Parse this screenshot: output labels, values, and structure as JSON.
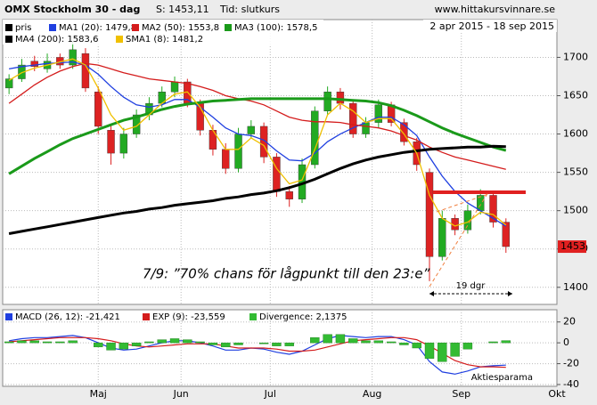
{
  "header": {
    "title": "OMX Stockholm 30 - dag",
    "price": "S: 1453,11",
    "mode": "Tid: slutkurs",
    "site": "www.hittakursvinnare.se",
    "range": "2 apr 2015 - 18 sep 2015"
  },
  "chart_data": [
    {
      "type": "candlestick",
      "name": "pris",
      "categories": [
        null,
        null,
        null,
        null,
        null,
        null,
        null,
        null,
        null,
        null,
        null,
        null,
        null,
        null,
        null,
        null,
        null,
        null,
        null,
        null,
        null,
        null,
        null,
        null,
        null,
        null,
        null,
        null,
        null,
        null,
        null,
        null,
        null,
        null,
        null,
        null,
        null,
        null,
        null,
        null
      ],
      "open": [
        1660,
        1672,
        1695,
        1685,
        1700,
        1690,
        1705,
        1655,
        1605,
        1575,
        1600,
        1625,
        1640,
        1655,
        1668,
        1640,
        1605,
        1580,
        1555,
        1600,
        1610,
        1570,
        1525,
        1515,
        1560,
        1630,
        1655,
        1640,
        1600,
        1615,
        1638,
        1615,
        1590,
        1550,
        1440,
        1490,
        1475,
        1500,
        1520,
        1485
      ],
      "high": [
        1678,
        1698,
        1702,
        1705,
        1705,
        1720,
        1712,
        1662,
        1612,
        1608,
        1632,
        1648,
        1662,
        1675,
        1672,
        1645,
        1612,
        1588,
        1608,
        1618,
        1615,
        1575,
        1532,
        1568,
        1636,
        1662,
        1660,
        1645,
        1622,
        1645,
        1642,
        1620,
        1595,
        1555,
        1500,
        1495,
        1508,
        1528,
        1525,
        1490
      ],
      "low": [
        1652,
        1668,
        1682,
        1680,
        1685,
        1685,
        1655,
        1600,
        1560,
        1568,
        1595,
        1618,
        1635,
        1648,
        1635,
        1598,
        1572,
        1548,
        1550,
        1595,
        1562,
        1518,
        1505,
        1510,
        1555,
        1625,
        1632,
        1595,
        1595,
        1608,
        1610,
        1585,
        1552,
        1408,
        1435,
        1468,
        1470,
        1495,
        1478,
        1445
      ],
      "close": [
        1672,
        1690,
        1688,
        1695,
        1690,
        1710,
        1660,
        1610,
        1575,
        1600,
        1625,
        1640,
        1655,
        1668,
        1640,
        1605,
        1580,
        1555,
        1600,
        1610,
        1570,
        1525,
        1515,
        1560,
        1630,
        1655,
        1640,
        1600,
        1615,
        1638,
        1615,
        1590,
        1560,
        1440,
        1490,
        1475,
        1500,
        1520,
        1485,
        1453.11
      ],
      "up_color": "#22aa22",
      "down_color": "#dd2222",
      "last_label": "1453",
      "series": [
        {
          "name": "MA1 (20): 1479,8",
          "color": "#1f3fe0",
          "values": [
            1685,
            1688,
            1690,
            1692,
            1693,
            1694,
            1690,
            1678,
            1662,
            1648,
            1638,
            1635,
            1638,
            1645,
            1645,
            1635,
            1622,
            1608,
            1600,
            1598,
            1592,
            1578,
            1566,
            1565,
            1575,
            1590,
            1600,
            1608,
            1615,
            1622,
            1622,
            1612,
            1598,
            1570,
            1545,
            1525,
            1510,
            1500,
            1490,
            1479.8
          ]
        },
        {
          "name": "MA2 (50): 1553,8",
          "color": "#d41c1c",
          "values": [
            1640,
            1652,
            1664,
            1674,
            1682,
            1688,
            1692,
            1690,
            1685,
            1680,
            1676,
            1672,
            1670,
            1668,
            1666,
            1662,
            1657,
            1650,
            1646,
            1643,
            1638,
            1630,
            1622,
            1618,
            1616,
            1616,
            1615,
            1612,
            1610,
            1608,
            1604,
            1598,
            1592,
            1583,
            1576,
            1570,
            1566,
            1562,
            1558,
            1553.8
          ]
        },
        {
          "name": "MA3 (100): 1578,5",
          "color": "#1a9a1a",
          "values": [
            1548,
            1558,
            1568,
            1577,
            1586,
            1594,
            1600,
            1606,
            1612,
            1618,
            1622,
            1627,
            1632,
            1636,
            1639,
            1641,
            1643,
            1644,
            1645,
            1646,
            1646,
            1646,
            1646,
            1646,
            1646,
            1646,
            1645,
            1644,
            1643,
            1641,
            1637,
            1631,
            1624,
            1616,
            1608,
            1601,
            1595,
            1589,
            1583,
            1578.5
          ]
        },
        {
          "name": "MA4 (200): 1583,6",
          "color": "#000000",
          "values": [
            1470,
            1473,
            1476,
            1479,
            1482,
            1485,
            1488,
            1491,
            1494,
            1497,
            1499,
            1502,
            1504,
            1507,
            1509,
            1511,
            1513,
            1516,
            1518,
            1521,
            1523,
            1526,
            1530,
            1535,
            1541,
            1548,
            1555,
            1561,
            1566,
            1570,
            1573,
            1576,
            1578,
            1580,
            1581,
            1582,
            1583,
            1583,
            1584,
            1583.6
          ]
        },
        {
          "name": "SMA1 (8): 1481,2",
          "color": "#f0c000",
          "values": [
            1670,
            1680,
            1686,
            1690,
            1694,
            1698,
            1690,
            1660,
            1625,
            1605,
            1610,
            1625,
            1640,
            1652,
            1655,
            1635,
            1605,
            1580,
            1580,
            1595,
            1585,
            1555,
            1535,
            1540,
            1580,
            1625,
            1640,
            1630,
            1615,
            1620,
            1620,
            1600,
            1575,
            1520,
            1490,
            1480,
            1485,
            1498,
            1495,
            1481.2
          ]
        }
      ],
      "ylim": [
        1380,
        1740
      ],
      "yticks": [
        1400,
        1450,
        1500,
        1550,
        1600,
        1650,
        1700
      ],
      "annotations": [
        "7/9: ”70% chans för lågpunkt till den 23:e”",
        "19 dgr"
      ]
    },
    {
      "type": "macd",
      "series": [
        {
          "name": "MACD (26, 12): -21,421",
          "color": "#1f3fe0",
          "values": [
            2,
            4,
            5,
            5,
            6,
            7,
            5,
            0,
            -5,
            -7,
            -6,
            -3,
            0,
            2,
            2,
            0,
            -3,
            -7,
            -7,
            -5,
            -6,
            -9,
            -11,
            -8,
            -2,
            4,
            7,
            6,
            5,
            6,
            6,
            3,
            -2,
            -18,
            -28,
            -30,
            -27,
            -23,
            -22,
            -21.421
          ]
        },
        {
          "name": "EXP (9): -23,559",
          "color": "#d41c1c",
          "values": [
            1,
            2,
            3,
            4,
            5,
            5,
            5,
            4,
            2,
            -1,
            -3,
            -4,
            -3,
            -2,
            -1,
            -1,
            -1,
            -3,
            -5,
            -5,
            -5,
            -6,
            -8,
            -8,
            -7,
            -4,
            -1,
            2,
            3,
            4,
            5,
            5,
            3,
            -3,
            -10,
            -17,
            -21,
            -23,
            -23,
            -23.559
          ]
        },
        {
          "name": "Divergence: 2,1375",
          "color": "#33bb33",
          "bars": true,
          "values": [
            1,
            2,
            2,
            1,
            1,
            2,
            0,
            -4,
            -7,
            -6,
            -3,
            1,
            3,
            4,
            3,
            1,
            -2,
            -4,
            -2,
            0,
            -1,
            -3,
            -3,
            0,
            5,
            8,
            8,
            4,
            2,
            2,
            1,
            -2,
            -5,
            -15,
            -18,
            -13,
            -6,
            0,
            1,
            2.1375
          ]
        }
      ],
      "ylim": [
        -40,
        30
      ],
      "yticks": [
        -40,
        -20,
        0,
        20
      ],
      "xlim": [
        -0.5,
        43
      ],
      "xticks": [
        {
          "value": 7,
          "label": "Maj"
        },
        {
          "value": 13.5,
          "label": "Jun"
        },
        {
          "value": 20.5,
          "label": "Jul"
        },
        {
          "value": 28.5,
          "label": "Aug"
        },
        {
          "value": 35.5,
          "label": "Sep"
        },
        {
          "value": 43,
          "label": "Okt"
        }
      ],
      "logo": "Aktiesparama"
    }
  ]
}
